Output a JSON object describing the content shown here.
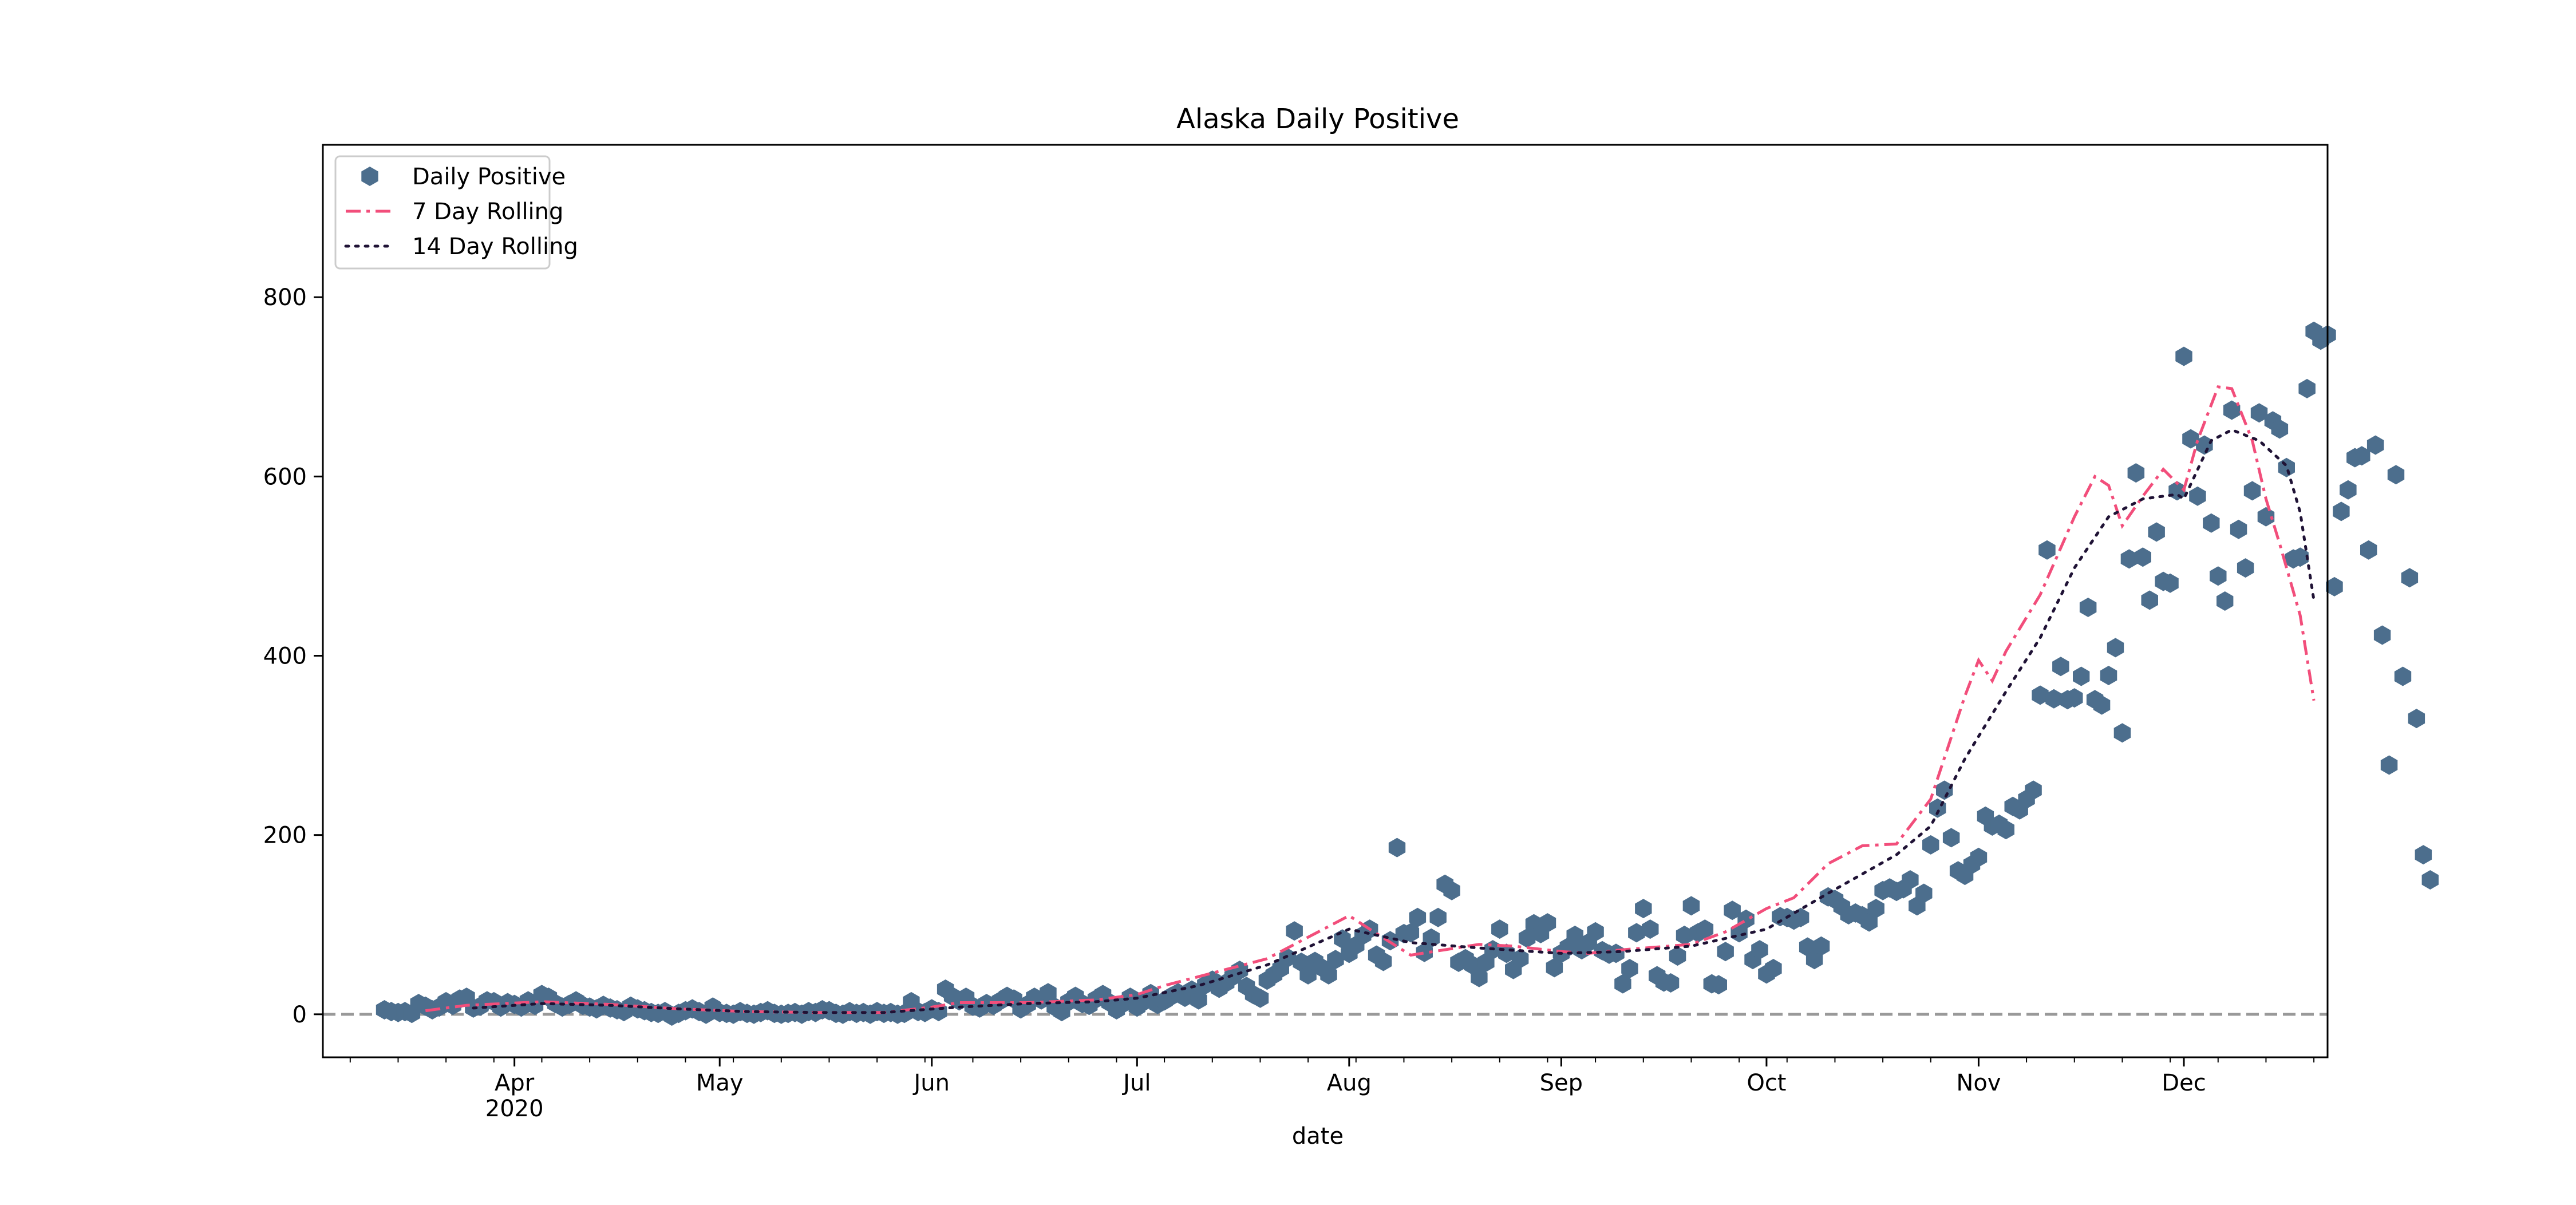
{
  "chart_data": {
    "type": "scatter",
    "title": "Alaska Daily Positive",
    "xlabel": "date",
    "ylabel": "",
    "x_start": "2020-03-13",
    "x_end": "2020-12-20",
    "xlim": [
      "2020-03-04",
      "2020-12-22"
    ],
    "ylim": [
      -48,
      970
    ],
    "yticks": [
      0,
      200,
      400,
      600,
      800
    ],
    "xticks": [
      {
        "date": "2020-04-01",
        "label": "Apr",
        "sublabel": "2020"
      },
      {
        "date": "2020-05-01",
        "label": "May",
        "sublabel": ""
      },
      {
        "date": "2020-06-01",
        "label": "Jun",
        "sublabel": ""
      },
      {
        "date": "2020-07-01",
        "label": "Jul",
        "sublabel": ""
      },
      {
        "date": "2020-08-01",
        "label": "Aug",
        "sublabel": ""
      },
      {
        "date": "2020-09-01",
        "label": "Sep",
        "sublabel": ""
      },
      {
        "date": "2020-10-01",
        "label": "Oct",
        "sublabel": ""
      },
      {
        "date": "2020-11-01",
        "label": "Nov",
        "sublabel": ""
      },
      {
        "date": "2020-12-01",
        "label": "Dec",
        "sublabel": ""
      }
    ],
    "zero_line": 0,
    "grid": false,
    "legend_position": "top-left",
    "series": [
      {
        "name": "Daily Positive",
        "kind": "scatter",
        "color": "#4c6e8d",
        "values": [
          5,
          3,
          2,
          3,
          1,
          12,
          9,
          5,
          8,
          14,
          10,
          17,
          19,
          7,
          9,
          15,
          14,
          8,
          13,
          11,
          8,
          15,
          10,
          22,
          19,
          12,
          8,
          11,
          15,
          10,
          8,
          6,
          10,
          7,
          5,
          3,
          9,
          6,
          4,
          2,
          1,
          3,
          -2,
          1,
          4,
          6,
          3,
          0,
          8,
          2,
          1,
          0,
          3,
          1,
          0,
          2,
          4,
          1,
          0,
          1,
          2,
          0,
          3,
          2,
          5,
          4,
          1,
          0,
          3,
          1,
          2,
          0,
          3,
          1,
          2,
          0,
          1,
          14,
          3,
          2,
          6,
          3,
          28,
          20,
          15,
          19,
          9,
          7,
          12,
          10,
          15,
          20,
          17,
          6,
          11,
          19,
          16,
          24,
          8,
          3,
          14,
          20,
          12,
          10,
          17,
          22,
          13,
          5,
          12,
          19,
          8,
          14,
          23,
          11,
          15,
          20,
          24,
          19,
          27,
          16,
          33,
          38,
          29,
          35,
          42,
          49,
          31,
          22,
          18,
          38,
          44,
          51,
          63,
          93,
          58,
          44,
          59,
          52,
          44,
          61,
          84,
          68,
          77,
          88,
          95,
          66,
          59,
          82,
          186,
          90,
          91,
          108,
          69,
          85,
          108,
          145,
          138,
          58,
          62,
          55,
          41,
          58,
          72,
          95,
          68,
          50,
          62,
          85,
          101,
          90,
          102,
          52,
          68,
          75,
          88,
          72,
          80,
          92,
          71,
          67,
          68,
          34,
          51,
          91,
          118,
          95,
          43,
          36,
          35,
          65,
          88,
          121,
          91,
          95,
          34,
          33,
          70,
          116,
          91,
          106,
          61,
          72,
          45,
          51,
          109,
          108,
          105,
          108,
          75,
          61,
          76,
          131,
          128,
          120,
          111,
          113,
          110,
          103,
          118,
          138,
          141,
          137,
          140,
          150,
          121,
          135,
          189,
          230,
          250,
          197,
          160,
          155,
          167,
          175,
          221,
          210,
          212,
          206,
          232,
          228,
          240,
          250,
          356,
          518,
          352,
          388,
          351,
          353,
          377,
          454,
          351,
          345,
          378,
          409,
          314,
          508,
          604,
          510,
          462,
          538,
          483,
          481,
          584,
          734,
          642,
          578,
          635,
          548,
          489,
          461,
          674,
          541,
          498,
          584,
          671,
          555,
          662,
          653,
          610,
          508,
          510,
          698,
          762,
          752,
          758,
          477,
          561,
          585,
          621,
          623,
          518,
          635,
          423,
          278,
          602,
          377,
          487,
          330,
          178,
          150
        ]
      },
      {
        "name": "7 Day Rolling",
        "kind": "line",
        "style": "dashdot",
        "color": "#f24e7b",
        "knots": [
          [
            "2020-03-19",
            4
          ],
          [
            "2020-03-25",
            10
          ],
          [
            "2020-04-05",
            14
          ],
          [
            "2020-04-15",
            11
          ],
          [
            "2020-04-25",
            6
          ],
          [
            "2020-05-05",
            3
          ],
          [
            "2020-05-15",
            2
          ],
          [
            "2020-05-25",
            2
          ],
          [
            "2020-06-01",
            8
          ],
          [
            "2020-06-05",
            13
          ],
          [
            "2020-06-15",
            13
          ],
          [
            "2020-06-25",
            16
          ],
          [
            "2020-07-01",
            22
          ],
          [
            "2020-07-05",
            32
          ],
          [
            "2020-07-10",
            42
          ],
          [
            "2020-07-15",
            52
          ],
          [
            "2020-07-20",
            62
          ],
          [
            "2020-07-25",
            82
          ],
          [
            "2020-08-01",
            110
          ],
          [
            "2020-08-05",
            90
          ],
          [
            "2020-08-10",
            66
          ],
          [
            "2020-08-15",
            72
          ],
          [
            "2020-08-20",
            78
          ],
          [
            "2020-08-25",
            76
          ],
          [
            "2020-09-01",
            70
          ],
          [
            "2020-09-05",
            68
          ],
          [
            "2020-09-10",
            72
          ],
          [
            "2020-09-15",
            75
          ],
          [
            "2020-09-20",
            78
          ],
          [
            "2020-09-25",
            92
          ],
          [
            "2020-10-01",
            118
          ],
          [
            "2020-10-05",
            130
          ],
          [
            "2020-10-10",
            168
          ],
          [
            "2020-10-15",
            188
          ],
          [
            "2020-10-20",
            190
          ],
          [
            "2020-10-25",
            240
          ],
          [
            "2020-10-30",
            355
          ],
          [
            "2020-11-01",
            395
          ],
          [
            "2020-11-03",
            372
          ],
          [
            "2020-11-05",
            405
          ],
          [
            "2020-11-10",
            468
          ],
          [
            "2020-11-15",
            555
          ],
          [
            "2020-11-18",
            600
          ],
          [
            "2020-11-20",
            590
          ],
          [
            "2020-11-22",
            545
          ],
          [
            "2020-11-25",
            578
          ],
          [
            "2020-11-28",
            608
          ],
          [
            "2020-12-01",
            585
          ],
          [
            "2020-12-03",
            640
          ],
          [
            "2020-12-06",
            700
          ],
          [
            "2020-12-08",
            698
          ],
          [
            "2020-12-11",
            640
          ],
          [
            "2020-12-13",
            575
          ],
          [
            "2020-12-15",
            525
          ],
          [
            "2020-12-18",
            445
          ],
          [
            "2020-12-20",
            350
          ]
        ]
      },
      {
        "name": "14 Day Rolling",
        "kind": "line",
        "style": "dotted",
        "color": "#1f1235",
        "knots": [
          [
            "2020-03-26",
            7
          ],
          [
            "2020-04-05",
            12
          ],
          [
            "2020-04-15",
            10
          ],
          [
            "2020-04-25",
            6
          ],
          [
            "2020-05-05",
            3
          ],
          [
            "2020-05-15",
            2
          ],
          [
            "2020-05-25",
            2
          ],
          [
            "2020-06-05",
            8
          ],
          [
            "2020-06-15",
            12
          ],
          [
            "2020-06-25",
            14
          ],
          [
            "2020-07-01",
            18
          ],
          [
            "2020-07-10",
            32
          ],
          [
            "2020-07-20",
            55
          ],
          [
            "2020-08-01",
            95
          ],
          [
            "2020-08-10",
            80
          ],
          [
            "2020-08-20",
            74
          ],
          [
            "2020-09-01",
            68
          ],
          [
            "2020-09-10",
            70
          ],
          [
            "2020-09-20",
            76
          ],
          [
            "2020-10-01",
            95
          ],
          [
            "2020-10-10",
            135
          ],
          [
            "2020-10-20",
            178
          ],
          [
            "2020-10-25",
            210
          ],
          [
            "2020-10-30",
            285
          ],
          [
            "2020-11-05",
            360
          ],
          [
            "2020-11-10",
            420
          ],
          [
            "2020-11-15",
            498
          ],
          [
            "2020-11-20",
            555
          ],
          [
            "2020-11-25",
            575
          ],
          [
            "2020-11-30",
            580
          ],
          [
            "2020-12-01",
            575
          ],
          [
            "2020-12-05",
            640
          ],
          [
            "2020-12-08",
            652
          ],
          [
            "2020-12-12",
            640
          ],
          [
            "2020-12-16",
            612
          ],
          [
            "2020-12-18",
            560
          ],
          [
            "2020-12-20",
            462
          ]
        ]
      }
    ]
  }
}
